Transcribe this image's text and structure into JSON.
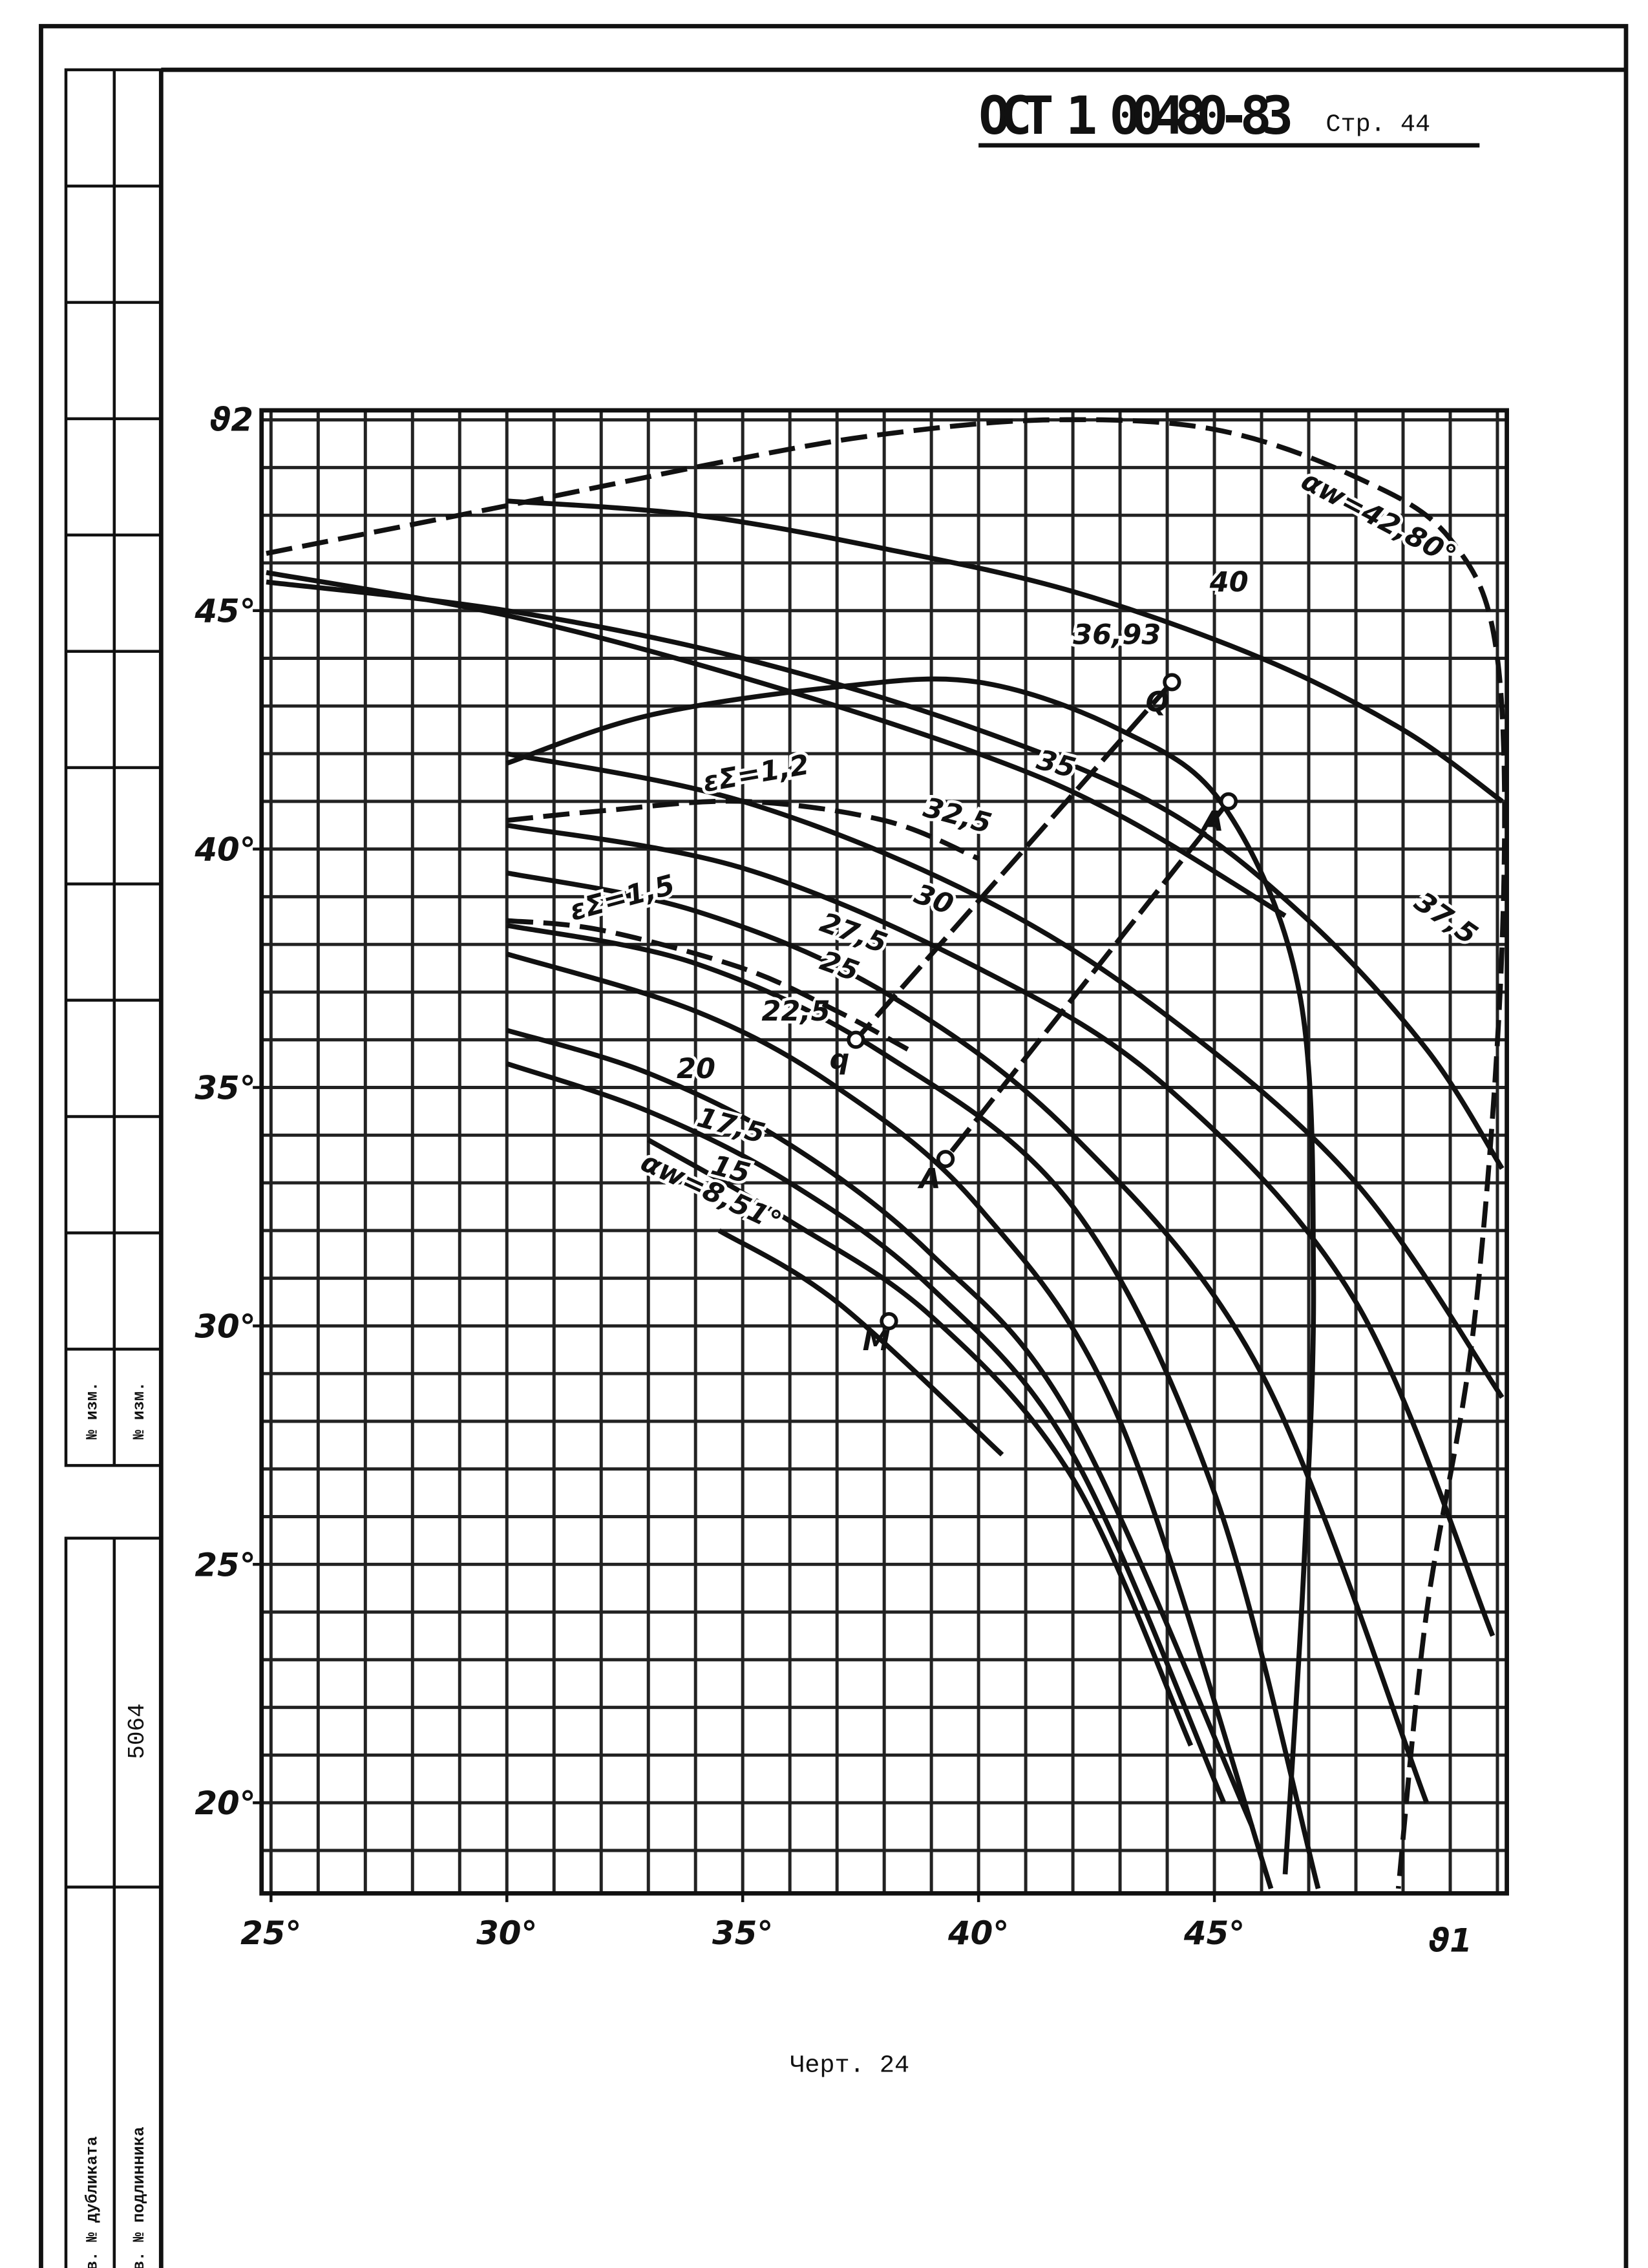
{
  "header": {
    "title": "ОСТ 1 00480-83",
    "page": "Стр. 44"
  },
  "caption": "Черт. 24",
  "side": {
    "change1": "№ изм.",
    "change2": "№ изм.",
    "number": "5064",
    "duplicate": "Инв. № дубликата",
    "original": "Инв. № подлинника"
  },
  "chart_data": {
    "type": "line",
    "xlabel": "ϑ1",
    "ylabel": "ϑ2",
    "xlim": [
      24.8,
      51.2
    ],
    "ylim": [
      18.1,
      49.2
    ],
    "xticks": [
      {
        "value": 25,
        "label": "25°"
      },
      {
        "value": 30,
        "label": "30°"
      },
      {
        "value": 35,
        "label": "35°"
      },
      {
        "value": 40,
        "label": "40°"
      },
      {
        "value": 45,
        "label": "45°"
      }
    ],
    "yticks": [
      {
        "value": 20,
        "label": "20°"
      },
      {
        "value": 25,
        "label": "25°"
      },
      {
        "value": 30,
        "label": "30°"
      },
      {
        "value": 35,
        "label": "35°"
      },
      {
        "value": 40,
        "label": "40°"
      },
      {
        "value": 45,
        "label": "45°"
      }
    ],
    "xgrid": [
      25,
      26,
      27,
      28,
      29,
      30,
      31,
      32,
      33,
      34,
      35,
      36,
      37,
      38,
      39,
      40,
      41,
      42,
      43,
      44,
      45,
      46,
      47,
      48,
      49,
      50,
      51
    ],
    "ygrid": [
      19,
      20,
      21,
      22,
      23,
      24,
      25,
      26,
      27,
      28,
      29,
      30,
      31,
      32,
      33,
      34,
      35,
      36,
      37,
      38,
      39,
      40,
      41,
      42,
      43,
      44,
      45,
      46,
      47,
      48,
      49
    ],
    "color": "#111111",
    "series": [
      {
        "label": "αw=42,80°",
        "dashed": true,
        "x": [
          24.9,
          30,
          35,
          38,
          41.5,
          45,
          48,
          50,
          51,
          51.1,
          50.5,
          49.5,
          48.9
        ],
        "y": [
          46.2,
          47.2,
          48.2,
          48.7,
          49.0,
          48.8,
          47.8,
          46.5,
          44,
          38,
          30,
          24,
          18.2
        ]
      },
      {
        "label": "40",
        "dashed": false,
        "x": [
          30,
          34,
          38,
          42,
          46,
          49,
          51.1
        ],
        "y": [
          47.3,
          47.0,
          46.3,
          45.4,
          44.0,
          42.5,
          41.0
        ]
      },
      {
        "label": "37,5",
        "dashed": false,
        "x": [
          24.9,
          30,
          35,
          40,
          44,
          47,
          49.5,
          51.1
        ],
        "y": [
          45.6,
          45.0,
          44.0,
          42.5,
          40.8,
          38.5,
          35.8,
          33.3
        ]
      },
      {
        "label": "36,93",
        "dashed": false,
        "x": [
          30,
          33,
          37,
          40,
          43,
          45.2,
          46.8,
          47.1,
          46.9,
          46.5
        ],
        "y": [
          41.8,
          42.8,
          43.4,
          43.5,
          42.5,
          40.9,
          37,
          31,
          25,
          18.5
        ]
      },
      {
        "label": "35",
        "dashed": false,
        "x": [
          24.9,
          30,
          35,
          40,
          43,
          46.5
        ],
        "y": [
          45.8,
          44.9,
          43.6,
          42,
          40.7,
          38.6
        ]
      },
      {
        "label": "32,5",
        "dashed": false,
        "x": [
          30,
          35,
          40,
          44,
          48,
          51.1
        ],
        "y": [
          42,
          41,
          39,
          36.5,
          33,
          28.5
        ]
      },
      {
        "label": "30",
        "dashed": false,
        "x": [
          30,
          35,
          40,
          44,
          48,
          50.9
        ],
        "y": [
          40.5,
          39.6,
          37.5,
          35,
          30.5,
          23.5
        ]
      },
      {
        "label": "27,5",
        "dashed": false,
        "x": [
          30,
          34,
          38,
          42,
          46,
          49.5
        ],
        "y": [
          39.5,
          38.7,
          37,
          34,
          29,
          20
        ]
      },
      {
        "label": "25",
        "dashed": false,
        "x": [
          30,
          34,
          38,
          42,
          45,
          47.2
        ],
        "y": [
          38.4,
          37.6,
          35.7,
          32.5,
          26.5,
          18.2
        ]
      },
      {
        "label": "22,5",
        "dashed": false,
        "x": [
          30,
          34,
          37,
          40,
          43,
          46.2
        ],
        "y": [
          37.8,
          36.6,
          35,
          32.5,
          28,
          18.2
        ]
      },
      {
        "label": "20",
        "dashed": false,
        "x": [
          30,
          33,
          36,
          39,
          42,
          45.8
        ],
        "y": [
          36.2,
          35.3,
          33.8,
          31.5,
          28,
          19.5
        ]
      },
      {
        "label": "17,5",
        "dashed": false,
        "x": [
          30,
          33,
          36,
          39,
          42,
          45.2
        ],
        "y": [
          35.5,
          34.5,
          33,
          30.8,
          27.3,
          20
        ]
      },
      {
        "label": "15",
        "dashed": false,
        "x": [
          33,
          36,
          39,
          42,
          44.5
        ],
        "y": [
          33.9,
          32.2,
          30.2,
          26.8,
          21.2
        ]
      },
      {
        "label": "αw=8,51°",
        "dashed": false,
        "x": [
          34.5,
          37,
          40.5
        ],
        "y": [
          32,
          30.5,
          27.3
        ]
      },
      {
        "label": "εΣ=1,2",
        "dashed": true,
        "x": [
          30,
          32,
          35,
          38,
          40
        ],
        "y": [
          40.6,
          40.8,
          41,
          40.6,
          39.8
        ]
      },
      {
        "label": "εΣ=1,5",
        "dashed": true,
        "x": [
          30,
          32,
          35,
          37,
          38.5
        ],
        "y": [
          38.5,
          38.3,
          37.5,
          36.6,
          35.8
        ]
      }
    ],
    "lines": [
      {
        "x": [
          44.1,
          37.4
        ],
        "y": [
          43.5,
          36.0
        ]
      },
      {
        "x": [
          45.3,
          39.3
        ],
        "y": [
          41.0,
          33.5
        ]
      }
    ],
    "points": [
      {
        "label": "Q",
        "x": 44.1,
        "y": 43.5
      },
      {
        "label": "A",
        "x": 45.3,
        "y": 41.0
      },
      {
        "label": "q",
        "x": 37.4,
        "y": 36.0
      },
      {
        "label": "A",
        "x": 39.3,
        "y": 33.5
      },
      {
        "label": "M",
        "x": 38.1,
        "y": 30.1
      }
    ]
  }
}
